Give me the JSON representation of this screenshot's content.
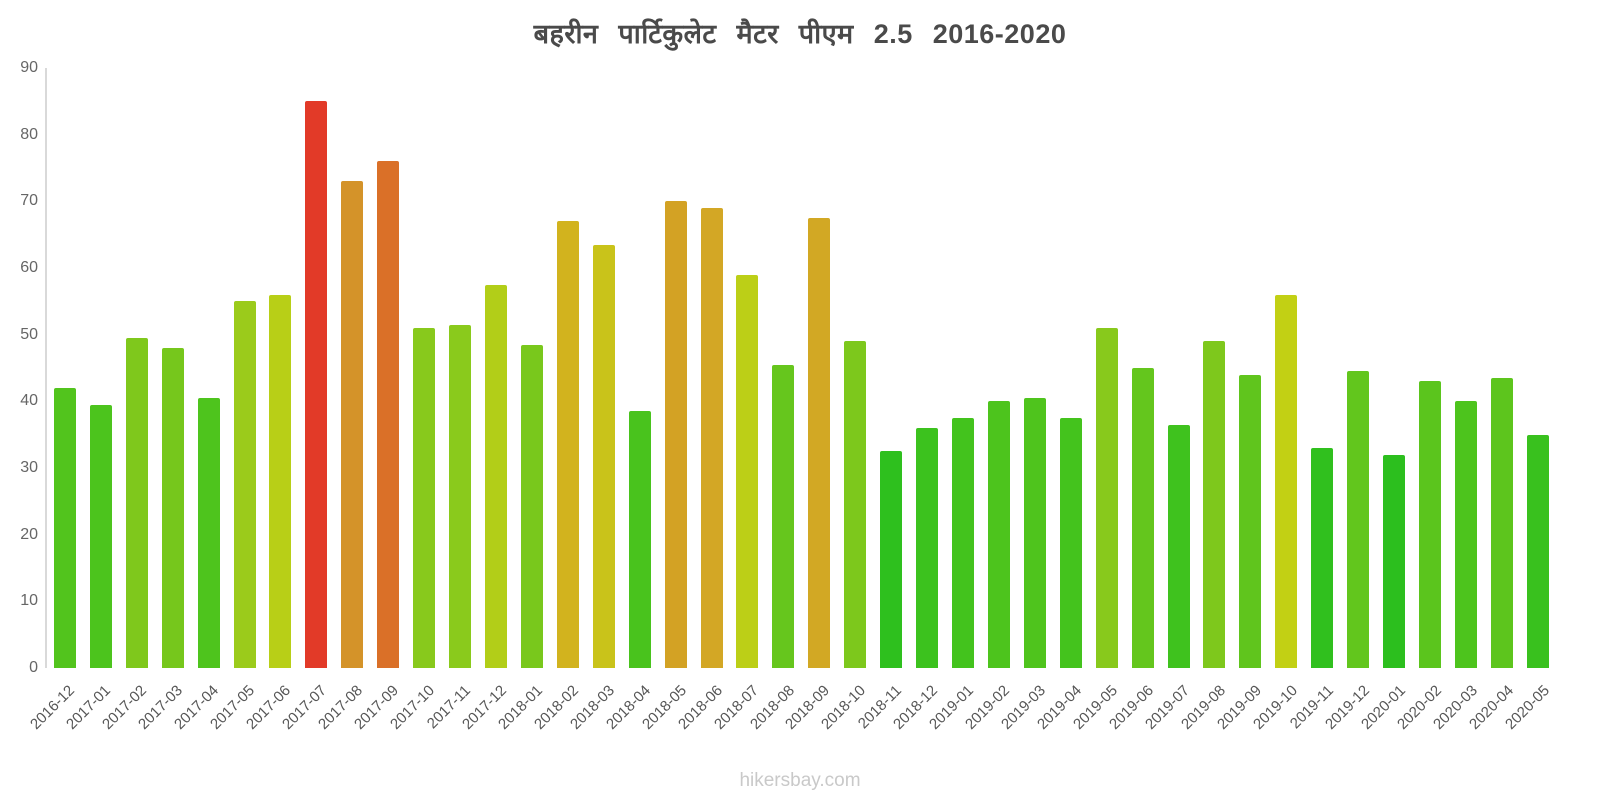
{
  "chart_data": {
    "type": "bar",
    "title": "बहरीन पार्टिकुलेट मैटर पीएम 2.5 2016-2020",
    "xlabel": "",
    "ylabel": "",
    "ylim": [
      0,
      90
    ],
    "y_ticks": [
      0,
      10,
      20,
      30,
      40,
      50,
      60,
      70,
      80,
      90
    ],
    "grid": false,
    "legend": "none",
    "categories": [
      "2016-12",
      "2017-01",
      "2017-02",
      "2017-03",
      "2017-04",
      "2017-05",
      "2017-06",
      "2017-07",
      "2017-08",
      "2017-09",
      "2017-10",
      "2017-11",
      "2017-12",
      "2018-01",
      "2018-02",
      "2018-03",
      "2018-04",
      "2018-05",
      "2018-06",
      "2018-07",
      "2018-08",
      "2018-09",
      "2018-10",
      "2018-11",
      "2018-12",
      "2019-01",
      "2019-02",
      "2019-03",
      "2019-04",
      "2019-05",
      "2019-06",
      "2019-07",
      "2019-08",
      "2019-09",
      "2019-10",
      "2019-11",
      "2019-12",
      "2020-01",
      "2020-02",
      "2020-03",
      "2020-04",
      "2020-05"
    ],
    "values": [
      42,
      39.5,
      49.5,
      48,
      40.5,
      55,
      56,
      85,
      73,
      76,
      51,
      51.5,
      57.5,
      48.5,
      67,
      63.5,
      38.5,
      70,
      69,
      59,
      45.5,
      67.5,
      49,
      32.5,
      36,
      37.5,
      40,
      40.5,
      37.5,
      51,
      45,
      36.5,
      49,
      44,
      56,
      33,
      44.5,
      32,
      43,
      40,
      43.5,
      35
    ],
    "colors": [
      "#52c41d",
      "#4cc41d",
      "#7fc81c",
      "#76c71c",
      "#4ec41d",
      "#9bcb1b",
      "#b8cf17",
      "#e23a28",
      "#d49329",
      "#da7028",
      "#88c91c",
      "#8aca1c",
      "#b2ce18",
      "#79c81c",
      "#d2b31e",
      "#c9c31a",
      "#49c31d",
      "#d3a224",
      "#d3a725",
      "#bccf17",
      "#66c61d",
      "#d2a824",
      "#7dc81c",
      "#2ec01e",
      "#3cc21e",
      "#43c31d",
      "#4dc41d",
      "#4fc41d",
      "#44c31d",
      "#88c91c",
      "#64c61d",
      "#3fc21e",
      "#7ec81c",
      "#60c51d",
      "#c2d014",
      "#30c01e",
      "#62c61d",
      "#2cbf1e",
      "#5bc51d",
      "#4dc41d",
      "#5dc51d",
      "#39c11e"
    ]
  },
  "watermark": "hikersbay.com"
}
